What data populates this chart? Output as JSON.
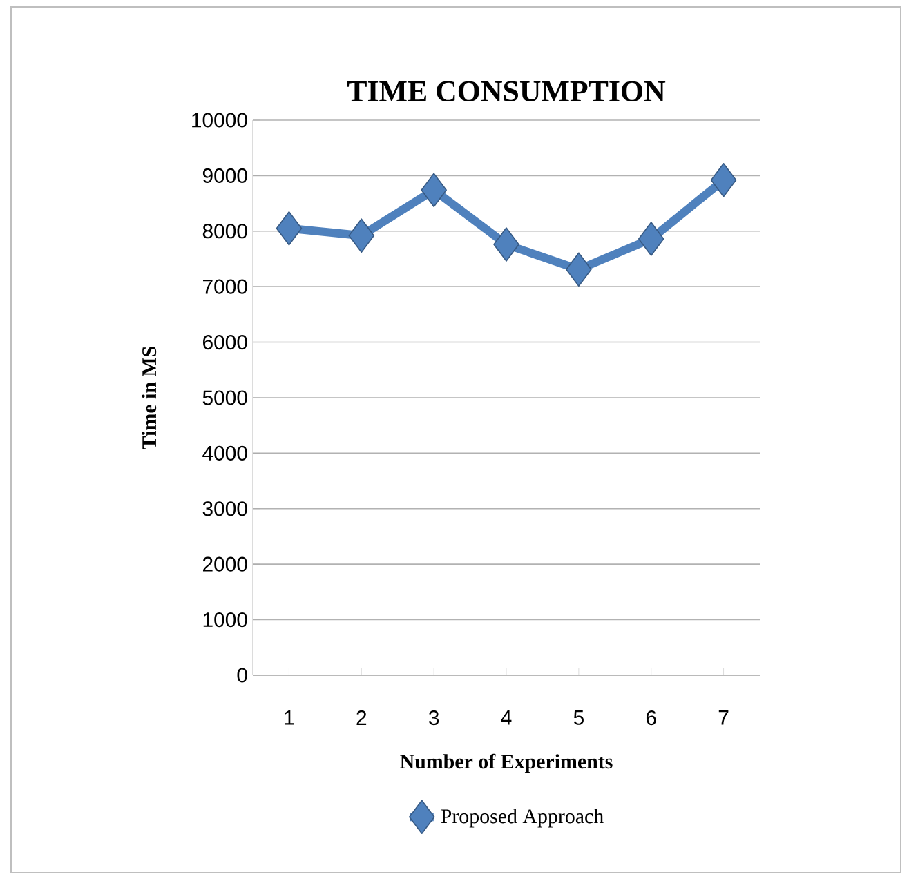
{
  "chart_data": {
    "type": "line",
    "title": "TIME CONSUMPTION",
    "xlabel": "Number of Experiments",
    "ylabel": "Time in MS",
    "categories": [
      "1",
      "2",
      "3",
      "4",
      "5",
      "6",
      "7"
    ],
    "series": [
      {
        "name": "Proposed Approach",
        "color": "#4f81bd",
        "values": [
          8050,
          7920,
          8740,
          7760,
          7310,
          7860,
          8920
        ]
      }
    ],
    "ylim": [
      0,
      10000
    ],
    "yticks": [
      0,
      1000,
      2000,
      3000,
      4000,
      5000,
      6000,
      7000,
      8000,
      9000,
      10000
    ],
    "grid": "y",
    "legend": "bottom",
    "marker": "diamond",
    "line_style": "solid"
  }
}
